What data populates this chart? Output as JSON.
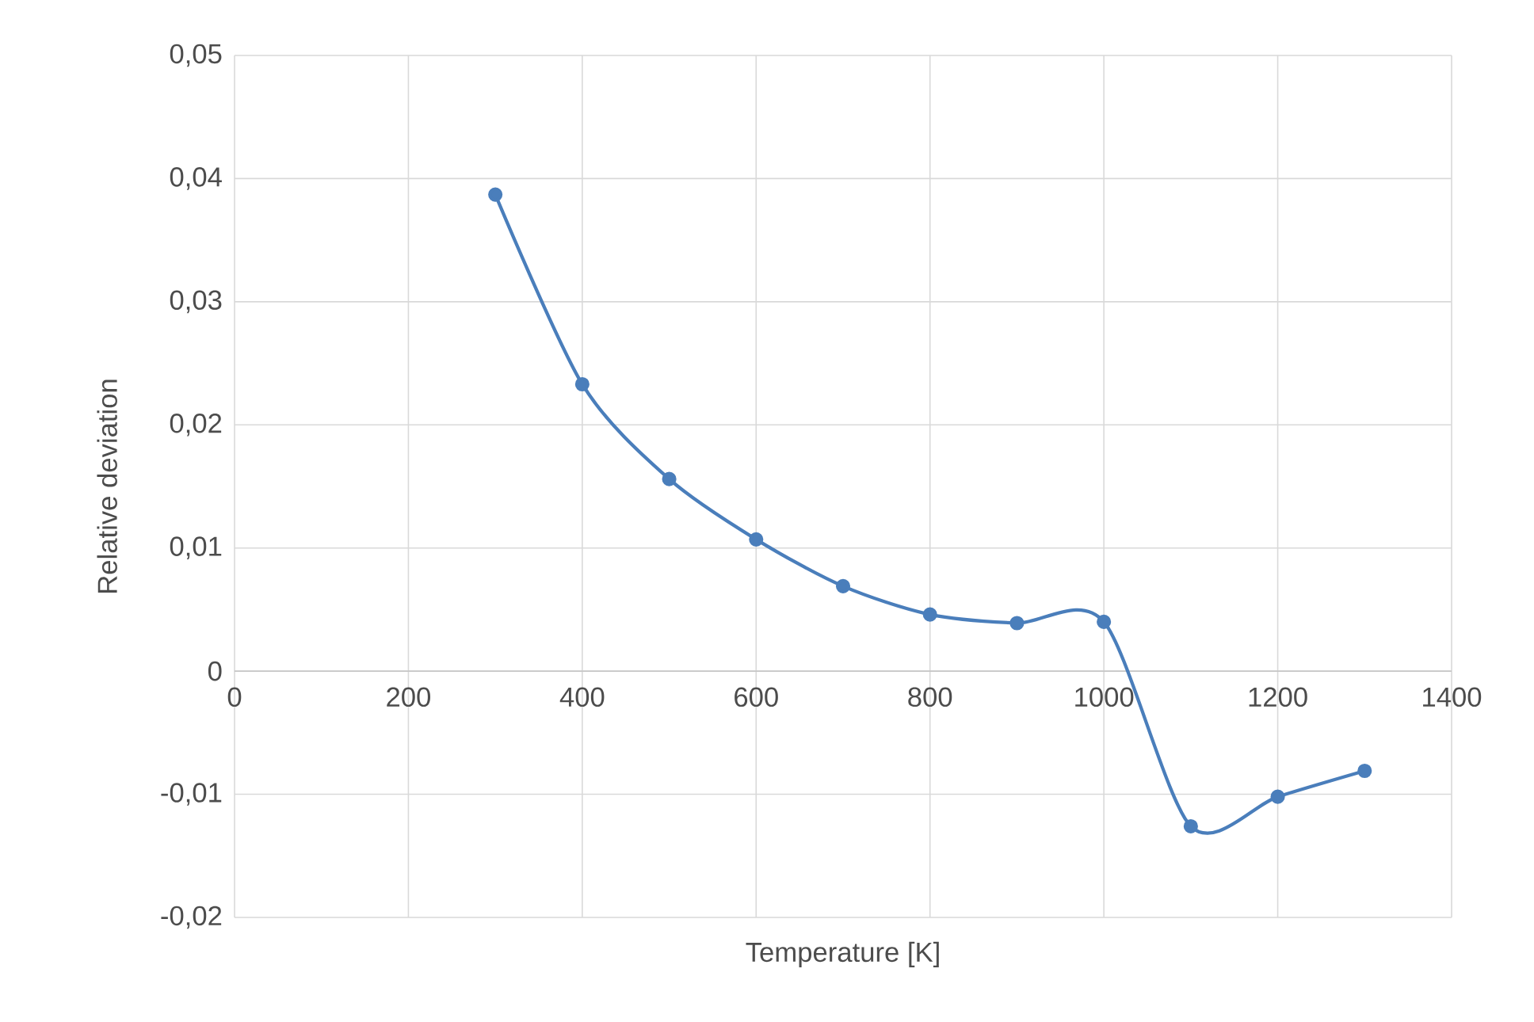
{
  "chart_data": {
    "type": "line",
    "xlabel": "Temperature [K]",
    "ylabel": "Relative deviation",
    "x": [
      300,
      400,
      500,
      600,
      700,
      800,
      900,
      1000,
      1100,
      1200,
      1300
    ],
    "series": [
      {
        "color": "#4a7ebb",
        "values": [
          0.0387,
          0.0233,
          0.0156,
          0.0107,
          0.0069,
          0.0046,
          0.0039,
          0.004,
          -0.0126,
          -0.0102,
          -0.0081
        ]
      }
    ],
    "xlim": [
      0,
      1400
    ],
    "ylim": [
      -0.02,
      0.05
    ],
    "xticks": [
      0,
      200,
      400,
      600,
      800,
      1000,
      1200,
      1400
    ],
    "yticks": [
      {
        "value": -0.02,
        "label": "-0,02"
      },
      {
        "value": -0.01,
        "label": "-0,01"
      },
      {
        "value": 0,
        "label": "0"
      },
      {
        "value": 0.01,
        "label": "0,01"
      },
      {
        "value": 0.02,
        "label": "0,02"
      },
      {
        "value": 0.03,
        "label": "0,03"
      },
      {
        "value": 0.04,
        "label": "0,04"
      },
      {
        "value": 0.05,
        "label": "0,05"
      }
    ],
    "grid": true,
    "marker": "circle",
    "line_style": "solid"
  }
}
